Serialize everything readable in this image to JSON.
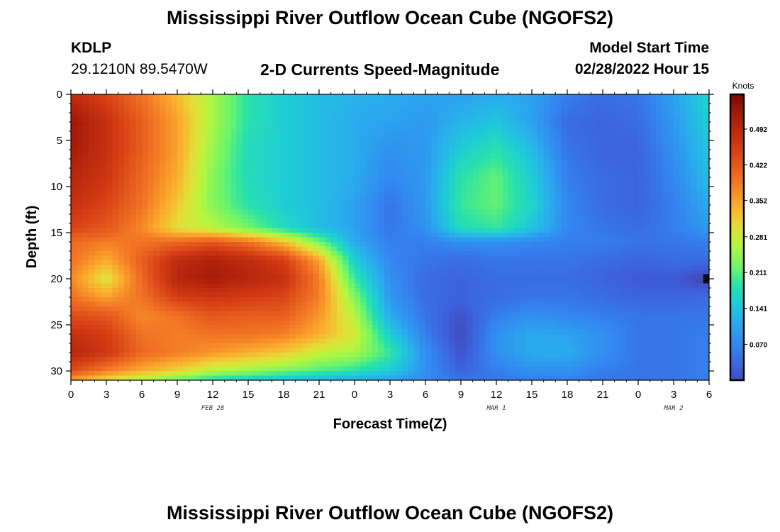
{
  "header": {
    "title": "Mississippi River Outflow Ocean Cube (NGOFS2)",
    "station_id": "KDLP",
    "station_coords": "29.1210N  89.5470W",
    "subtitle": "2-D Currents Speed-Magnitude",
    "model_start_label": "Model Start Time",
    "model_start_value": "02/28/2022 Hour 15"
  },
  "footer": {
    "title": "Mississippi River Outflow Ocean Cube (NGOFS2)"
  },
  "chart_data": {
    "type": "heatmap",
    "title": "2-D Currents Speed-Magnitude",
    "xlabel": "Forecast Time(Z)",
    "ylabel": "Depth (ft)",
    "x_tick_labels": [
      "0",
      "3",
      "6",
      "9",
      "12",
      "15",
      "18",
      "21",
      "0",
      "3",
      "6",
      "9",
      "12",
      "15",
      "18",
      "21",
      "0",
      "3",
      "6"
    ],
    "x_range_hours": [
      0,
      54
    ],
    "day_labels": [
      {
        "hour": 12,
        "text": "FEB 28"
      },
      {
        "hour": 36,
        "text": "MAR 1"
      },
      {
        "hour": 51,
        "text": "MAR 2"
      }
    ],
    "y_tick_labels": [
      "0",
      "5",
      "10",
      "15",
      "20",
      "25",
      "30"
    ],
    "y_range_ft": [
      0,
      31
    ],
    "y_inverted": true,
    "colorbar": {
      "unit": "Knots",
      "range": [
        0.0,
        0.56
      ],
      "tick_labels": [
        "0.070",
        "0.141",
        "0.211",
        "0.281",
        "0.352",
        "0.422",
        "0.492"
      ]
    },
    "hours": [
      0,
      3,
      6,
      9,
      12,
      15,
      18,
      21,
      24,
      27,
      30,
      33,
      36,
      39,
      42,
      45,
      48,
      51,
      54
    ],
    "depths_ft": [
      0,
      3,
      6,
      9,
      12,
      14.5,
      16,
      18,
      20,
      22,
      24,
      26,
      28,
      30,
      31
    ],
    "speed_knots": [
      [
        0.49,
        0.45,
        0.4,
        0.34,
        0.27,
        0.2,
        0.17,
        0.15,
        0.14,
        0.13,
        0.12,
        0.12,
        0.13,
        0.12,
        0.08,
        0.06,
        0.07,
        0.12,
        0.18
      ],
      [
        0.53,
        0.48,
        0.42,
        0.36,
        0.27,
        0.2,
        0.17,
        0.15,
        0.13,
        0.12,
        0.11,
        0.14,
        0.16,
        0.12,
        0.06,
        0.05,
        0.06,
        0.11,
        0.17
      ],
      [
        0.52,
        0.48,
        0.42,
        0.36,
        0.26,
        0.19,
        0.17,
        0.15,
        0.13,
        0.1,
        0.11,
        0.17,
        0.2,
        0.15,
        0.07,
        0.05,
        0.05,
        0.1,
        0.16
      ],
      [
        0.5,
        0.47,
        0.41,
        0.35,
        0.25,
        0.19,
        0.17,
        0.15,
        0.13,
        0.09,
        0.11,
        0.2,
        0.23,
        0.17,
        0.08,
        0.06,
        0.05,
        0.09,
        0.15
      ],
      [
        0.48,
        0.45,
        0.4,
        0.33,
        0.25,
        0.2,
        0.17,
        0.15,
        0.12,
        0.07,
        0.11,
        0.21,
        0.23,
        0.18,
        0.09,
        0.06,
        0.05,
        0.08,
        0.13
      ],
      [
        0.45,
        0.43,
        0.38,
        0.31,
        0.28,
        0.24,
        0.19,
        0.15,
        0.12,
        0.07,
        0.1,
        0.19,
        0.21,
        0.16,
        0.09,
        0.07,
        0.06,
        0.08,
        0.11
      ],
      [
        0.41,
        0.39,
        0.4,
        0.41,
        0.43,
        0.4,
        0.34,
        0.24,
        0.13,
        0.08,
        0.08,
        0.1,
        0.1,
        0.09,
        0.08,
        0.08,
        0.07,
        0.07,
        0.08
      ],
      [
        0.4,
        0.35,
        0.42,
        0.49,
        0.51,
        0.49,
        0.46,
        0.36,
        0.17,
        0.09,
        0.07,
        0.06,
        0.07,
        0.07,
        0.07,
        0.06,
        0.05,
        0.06,
        0.06
      ],
      [
        0.38,
        0.3,
        0.41,
        0.5,
        0.52,
        0.5,
        0.48,
        0.39,
        0.21,
        0.1,
        0.06,
        0.05,
        0.06,
        0.06,
        0.06,
        0.05,
        0.04,
        0.04,
        0.01
      ],
      [
        0.4,
        0.36,
        0.4,
        0.46,
        0.47,
        0.46,
        0.45,
        0.39,
        0.25,
        0.11,
        0.06,
        0.05,
        0.06,
        0.07,
        0.07,
        0.06,
        0.05,
        0.05,
        0.06
      ],
      [
        0.44,
        0.43,
        0.38,
        0.4,
        0.43,
        0.42,
        0.42,
        0.37,
        0.28,
        0.13,
        0.07,
        0.03,
        0.08,
        0.1,
        0.09,
        0.08,
        0.07,
        0.07,
        0.07
      ],
      [
        0.48,
        0.46,
        0.4,
        0.39,
        0.4,
        0.4,
        0.39,
        0.35,
        0.3,
        0.17,
        0.08,
        0.02,
        0.1,
        0.13,
        0.12,
        0.1,
        0.07,
        0.07,
        0.08
      ],
      [
        0.5,
        0.47,
        0.41,
        0.39,
        0.37,
        0.35,
        0.33,
        0.29,
        0.27,
        0.21,
        0.1,
        0.03,
        0.1,
        0.13,
        0.13,
        0.1,
        0.07,
        0.07,
        0.08
      ],
      [
        0.44,
        0.39,
        0.35,
        0.32,
        0.28,
        0.26,
        0.24,
        0.22,
        0.2,
        0.17,
        0.1,
        0.05,
        0.08,
        0.1,
        0.1,
        0.08,
        0.07,
        0.07,
        0.08
      ],
      [
        0.36,
        0.31,
        0.27,
        0.23,
        0.19,
        0.17,
        0.15,
        0.14,
        0.13,
        0.12,
        0.09,
        0.07,
        0.07,
        0.08,
        0.08,
        0.07,
        0.07,
        0.07,
        0.08
      ]
    ]
  }
}
